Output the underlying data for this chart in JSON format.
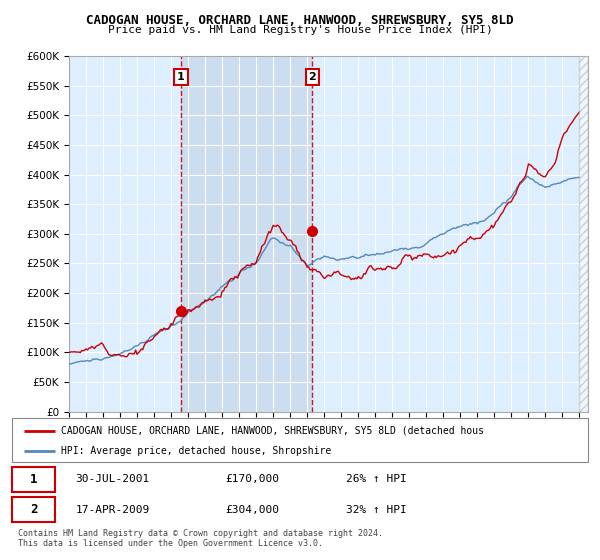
{
  "title": "CADOGAN HOUSE, ORCHARD LANE, HANWOOD, SHREWSBURY, SY5 8LD",
  "subtitle": "Price paid vs. HM Land Registry's House Price Index (HPI)",
  "legend_line1": "CADOGAN HOUSE, ORCHARD LANE, HANWOOD, SHREWSBURY, SY5 8LD (detached hous",
  "legend_line2": "HPI: Average price, detached house, Shropshire",
  "footnote1": "Contains HM Land Registry data © Crown copyright and database right 2024.",
  "footnote2": "This data is licensed under the Open Government Licence v3.0.",
  "sale1_label": "1",
  "sale1_date": "30-JUL-2001",
  "sale1_price": "£170,000",
  "sale1_hpi": "26% ↑ HPI",
  "sale2_label": "2",
  "sale2_date": "17-APR-2009",
  "sale2_price": "£304,000",
  "sale2_hpi": "32% ↑ HPI",
  "sale1_x": 2001.58,
  "sale1_y": 170000,
  "sale2_x": 2009.3,
  "sale2_y": 304000,
  "red_color": "#cc0000",
  "blue_color": "#5588bb",
  "dashed_color": "#cc0000",
  "bg_color": "#ddeeff",
  "highlight_bg": "#ccddf0",
  "grid_color": "#ffffff",
  "ylim": [
    0,
    600000
  ],
  "xlim_start": 1995,
  "xlim_end": 2025.5
}
